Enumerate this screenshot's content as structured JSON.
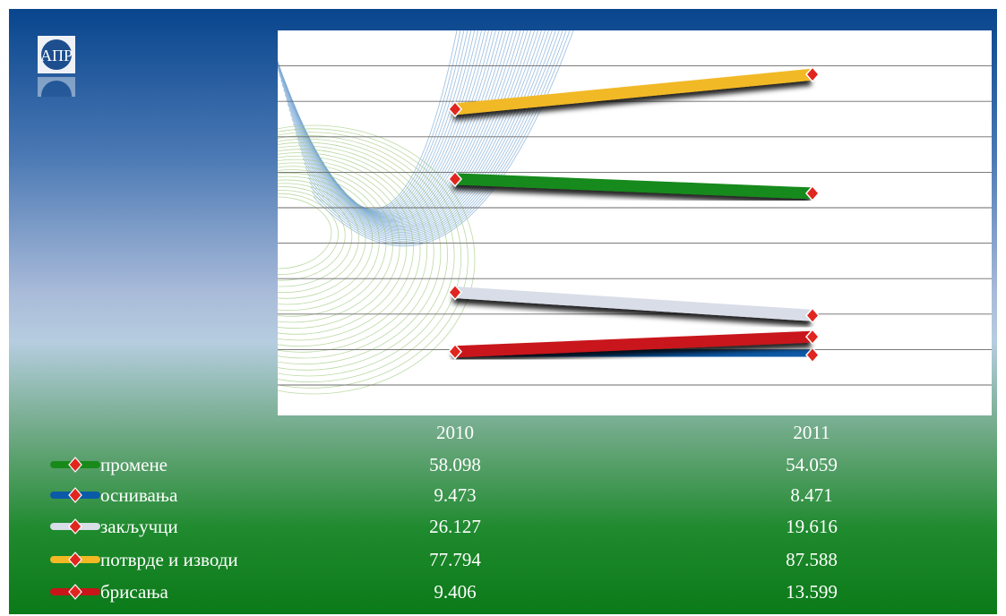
{
  "logo": {
    "name": "atr-logo",
    "text": "АПР"
  },
  "chart_data": {
    "type": "line",
    "categories": [
      "2010",
      "2011"
    ],
    "ylim": [
      0,
      100
    ],
    "gridlines": true,
    "legend_placement": "bottom-table",
    "series": [
      {
        "name": "промене",
        "values": [
          58.098,
          54.059
        ],
        "value_labels": [
          "58.098",
          "54.059"
        ],
        "color": "#198a1a"
      },
      {
        "name": "оснивања",
        "values": [
          9.473,
          8.471
        ],
        "value_labels": [
          "9.473",
          "8.471"
        ],
        "color": "#0b5aa8"
      },
      {
        "name": "закључци",
        "values": [
          26.127,
          19.616
        ],
        "value_labels": [
          "26.127",
          "19.616"
        ],
        "color": "#d9dde8"
      },
      {
        "name": "потврде и изводи",
        "values": [
          77.794,
          87.588
        ],
        "value_labels": [
          "77.794",
          "87.588"
        ],
        "color": "#f2b925"
      },
      {
        "name": "брисања",
        "values": [
          9.406,
          13.599
        ],
        "value_labels": [
          "9.406",
          "13.599"
        ],
        "color": "#c8151a"
      }
    ]
  }
}
